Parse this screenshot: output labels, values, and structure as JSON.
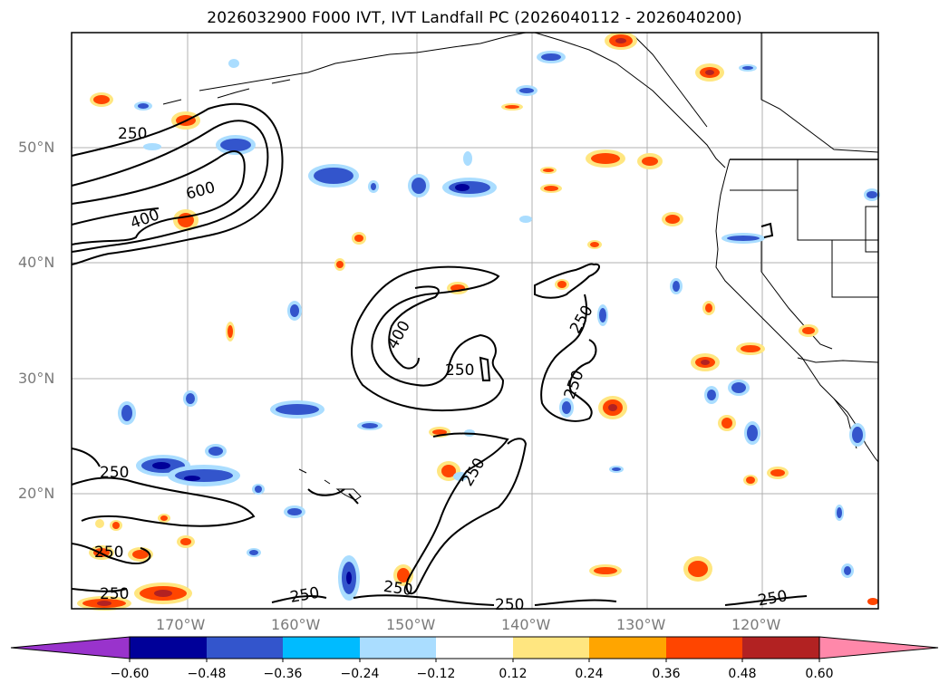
{
  "title": "2026032900 F000 IVT, IVT Landfall PC (2026040112 - 2026040200)",
  "lat_labels": [
    "50°N",
    "40°N",
    "30°N",
    "20°N"
  ],
  "lon_labels": [
    "170°W",
    "160°W",
    "150°W",
    "140°W",
    "130°W",
    "120°W"
  ],
  "contour_labels": {
    "c250_nw": "250",
    "c600": "600",
    "c400_nw": "400",
    "c400_mid": "400",
    "c250_mid": "250",
    "c250_e1": "250",
    "c250_e2": "250",
    "c250_s1": "250",
    "c250_w1": "250",
    "c250_w2": "250",
    "c250_w3": "250",
    "c250_b1": "250",
    "c250_b2": "250",
    "c250_b3": "250",
    "c250_b4": "250"
  },
  "colorbar": {
    "ticks": [
      "−0.60",
      "−0.48",
      "−0.36",
      "−0.24",
      "−0.12",
      "0.12",
      "0.24",
      "0.36",
      "0.48",
      "0.60"
    ],
    "colors": [
      "#9933cc",
      "#000099",
      "#3355cc",
      "#00bbff",
      "#aaddff",
      "#ffffff",
      "#ffe680",
      "#ffa500",
      "#ff4500",
      "#b22222",
      "#ff88aa"
    ]
  }
}
